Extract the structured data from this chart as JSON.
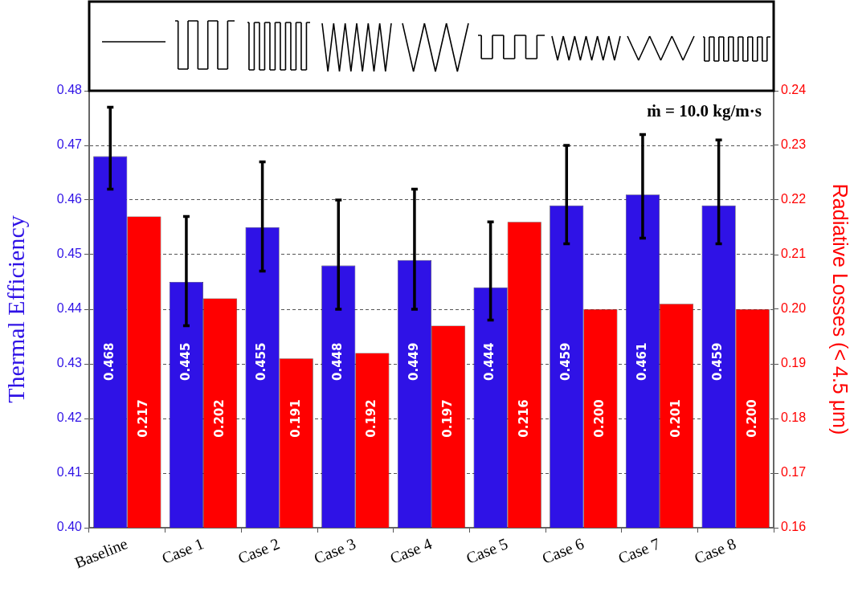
{
  "chart_data": {
    "type": "bar",
    "ylabel": "Thermal Efficiency",
    "y2label": "Radiative Losses (< 4.5 μm)",
    "categories": [
      "Baseline",
      "Case 1",
      "Case 2",
      "Case 3",
      "Case 4",
      "Case 5",
      "Case 6",
      "Case 7",
      "Case 8"
    ],
    "series": [
      {
        "color": "#2f12e6",
        "values": [
          0.468,
          0.445,
          0.455,
          0.448,
          0.449,
          0.444,
          0.459,
          0.461,
          0.459
        ],
        "value_labels": [
          "0.468",
          "0.445",
          "0.455",
          "0.448",
          "0.449",
          "0.444",
          "0.459",
          "0.461",
          "0.459"
        ],
        "errors": [
          [
            0.462,
            0.477
          ],
          [
            0.437,
            0.457
          ],
          [
            0.447,
            0.467
          ],
          [
            0.44,
            0.46
          ],
          [
            0.44,
            0.462
          ],
          [
            0.438,
            0.456
          ],
          [
            0.452,
            0.47
          ],
          [
            0.453,
            0.472
          ],
          [
            0.452,
            0.471
          ]
        ]
      },
      {
        "axis": "y2",
        "color": "#ff0000",
        "values": [
          0.217,
          0.202,
          0.191,
          0.192,
          0.197,
          0.216,
          0.2,
          0.201,
          0.2
        ],
        "value_labels": [
          "0.217",
          "0.202",
          "0.191",
          "0.192",
          "0.197",
          "0.216",
          "0.200",
          "0.201",
          "0.200"
        ]
      }
    ],
    "ylim": [
      0.4,
      0.48
    ],
    "yticks": [
      {
        "value": 0.4,
        "label": "0.40"
      },
      0.41,
      0.42,
      0.43,
      0.44,
      0.45,
      0.46,
      0.47,
      {
        "value": 0.48,
        "label": "0.48"
      }
    ],
    "y2lim": [
      0.16,
      0.24
    ],
    "y2ticks": [
      0.16,
      0.17,
      0.18,
      0.19,
      {
        "value": 0.2,
        "label": "0.20"
      },
      0.21,
      0.22,
      0.23,
      0.24
    ],
    "grid": "y",
    "legend": false,
    "annotations": [
      "ṁ = 10.0 kg/m·s"
    ]
  }
}
